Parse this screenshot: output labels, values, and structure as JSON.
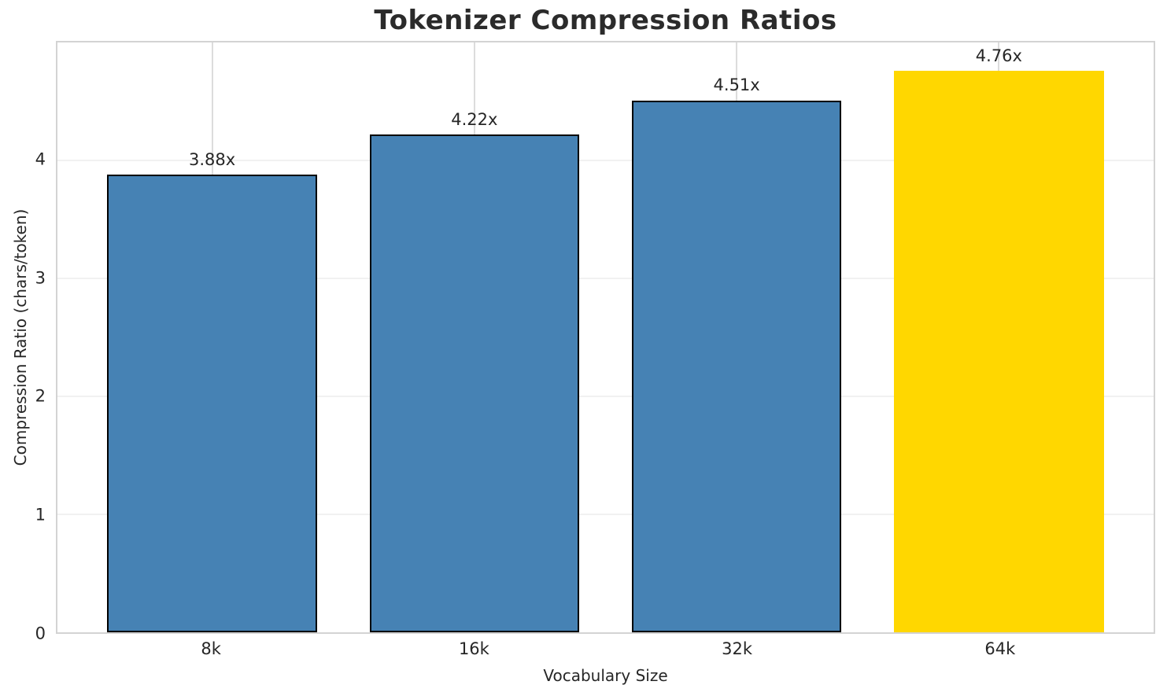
{
  "chart_data": {
    "type": "bar",
    "title": "Tokenizer Compression Ratios",
    "xlabel": "Vocabulary Size",
    "ylabel": "Compression Ratio (chars/token)",
    "categories": [
      "8k",
      "16k",
      "32k",
      "64k"
    ],
    "values": [
      3.88,
      4.22,
      4.51,
      4.76
    ],
    "bar_labels": [
      "3.88x",
      "4.22x",
      "4.51x",
      "4.76x"
    ],
    "bar_colors": [
      "#4682B4",
      "#4682B4",
      "#4682B4",
      "#FFD700"
    ],
    "bar_edge_colors": [
      "#000000",
      "#000000",
      "#000000",
      "none"
    ],
    "highlighted_category": "64k",
    "ylim": [
      0,
      5
    ],
    "yticks": [
      0,
      1,
      2,
      3,
      4
    ],
    "grid": true,
    "legend_position": "none",
    "bar_width_fraction": 0.8,
    "colors": {
      "bar_default": "#4682B4",
      "bar_highlight": "#FFD700",
      "bar_edge": "#000000",
      "spine": "#d3d3d3",
      "grid_horizontal": "#f1f1f1",
      "grid_vertical": "#dcdcdc",
      "text": "#262626"
    }
  }
}
